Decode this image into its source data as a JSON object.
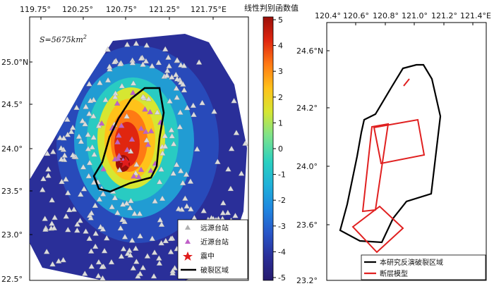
{
  "left_map": {
    "lon_ticks": [
      "119.75°",
      "120.25°",
      "120.75°",
      "121.25°",
      "121.75°E"
    ],
    "lat_ticks": [
      "25.0°N",
      "24.5°",
      "24.0°",
      "23.5°",
      "23.0°",
      "22.5°"
    ],
    "area_label": "S=5675km",
    "area_superscript": "2",
    "legend": [
      {
        "label": "远源台站",
        "symbol": "triangle-gray"
      },
      {
        "label": "近源台站",
        "symbol": "triangle-purple"
      },
      {
        "label": "震中",
        "symbol": "star-red"
      },
      {
        "label": "破裂区域",
        "symbol": "line-black"
      }
    ]
  },
  "colorbar": {
    "title": "线性判别函数值",
    "ticks": [
      "5",
      "4",
      "3",
      "2",
      "1",
      "0",
      "-1",
      "-2",
      "-3",
      "-4",
      "-5"
    ],
    "range": [
      -5,
      5
    ],
    "colors": [
      "#261a6e",
      "#2a2f99",
      "#2856c8",
      "#1f86e0",
      "#1fb0d9",
      "#2ad0c0",
      "#7ee38a",
      "#d6e632",
      "#ffc21a",
      "#ff7a14",
      "#e0260f",
      "#9b0f0a"
    ]
  },
  "right_map": {
    "lon_ticks": [
      "120.4°",
      "120.6°",
      "120.8°",
      "121.0°",
      "121.2°",
      "121.4°E"
    ],
    "lat_ticks": [
      "24.6°N",
      "24.2°",
      "24.0°",
      "23.6°",
      "23.2°"
    ],
    "legend": [
      {
        "label": "本研究反演破裂区域",
        "color": "#000000"
      },
      {
        "label": "断层模型",
        "color": "#e02020"
      }
    ]
  }
}
